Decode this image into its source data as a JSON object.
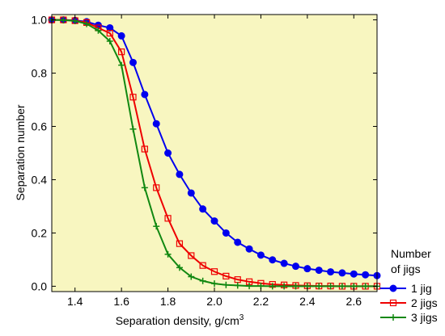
{
  "chart_data": {
    "type": "line",
    "xlabel": "Separation density,  g/cm",
    "xlabel_superscript": "3",
    "ylabel": "Separation number",
    "xlim": [
      1.3,
      2.7
    ],
    "ylim": [
      -0.02,
      1.02
    ],
    "x_ticks": [
      "1.4",
      "1.6",
      "1.8",
      "2.0",
      "2.2",
      "2.4",
      "2.6"
    ],
    "x_tick_values": [
      1.4,
      1.6,
      1.8,
      2.0,
      2.2,
      2.4,
      2.6
    ],
    "y_ticks": [
      "0.0",
      "0.2",
      "0.4",
      "0.6",
      "0.8",
      "1.0"
    ],
    "y_tick_values": [
      0.0,
      0.2,
      0.4,
      0.6,
      0.8,
      1.0
    ],
    "plot_background": "#f8f6c0",
    "grid": false,
    "legend_title": "Number\nof jigs",
    "legend_position": "right",
    "series": [
      {
        "name": "1 jig",
        "color": "#0000ee",
        "marker": "filled-circle",
        "points": [
          [
            1.3,
            1.0
          ],
          [
            1.35,
            1.0
          ],
          [
            1.4,
            0.998
          ],
          [
            1.45,
            0.993
          ],
          [
            1.5,
            0.98
          ],
          [
            1.55,
            0.97
          ],
          [
            1.6,
            0.94
          ],
          [
            1.65,
            0.84
          ],
          [
            1.7,
            0.72
          ],
          [
            1.75,
            0.61
          ],
          [
            1.8,
            0.5
          ],
          [
            1.85,
            0.42
          ],
          [
            1.9,
            0.35
          ],
          [
            1.95,
            0.29
          ],
          [
            2.0,
            0.245
          ],
          [
            2.05,
            0.2
          ],
          [
            2.1,
            0.165
          ],
          [
            2.15,
            0.14
          ],
          [
            2.2,
            0.117
          ],
          [
            2.25,
            0.099
          ],
          [
            2.3,
            0.086
          ],
          [
            2.35,
            0.075
          ],
          [
            2.4,
            0.066
          ],
          [
            2.45,
            0.06
          ],
          [
            2.5,
            0.054
          ],
          [
            2.55,
            0.05
          ],
          [
            2.6,
            0.046
          ],
          [
            2.65,
            0.043
          ],
          [
            2.7,
            0.04
          ]
        ]
      },
      {
        "name": "2 jigs",
        "color": "#ee0000",
        "marker": "open-square",
        "points": [
          [
            1.3,
            1.0
          ],
          [
            1.35,
            1.0
          ],
          [
            1.4,
            0.997
          ],
          [
            1.45,
            0.99
          ],
          [
            1.5,
            0.97
          ],
          [
            1.55,
            0.95
          ],
          [
            1.6,
            0.88
          ],
          [
            1.65,
            0.71
          ],
          [
            1.7,
            0.515
          ],
          [
            1.75,
            0.37
          ],
          [
            1.8,
            0.255
          ],
          [
            1.85,
            0.16
          ],
          [
            1.9,
            0.115
          ],
          [
            1.95,
            0.078
          ],
          [
            2.0,
            0.055
          ],
          [
            2.05,
            0.038
          ],
          [
            2.1,
            0.025
          ],
          [
            2.15,
            0.017
          ],
          [
            2.2,
            0.011
          ],
          [
            2.25,
            0.007
          ],
          [
            2.3,
            0.005
          ],
          [
            2.35,
            0.003
          ],
          [
            2.4,
            0.002
          ],
          [
            2.45,
            0.001
          ],
          [
            2.5,
            0.001
          ],
          [
            2.55,
            0.0
          ],
          [
            2.6,
            0.0
          ],
          [
            2.65,
            0.0
          ],
          [
            2.7,
            0.0
          ]
        ]
      },
      {
        "name": "3 jigs",
        "color": "#118811",
        "marker": "plus",
        "points": [
          [
            1.3,
            1.0
          ],
          [
            1.35,
            0.999
          ],
          [
            1.4,
            0.996
          ],
          [
            1.45,
            0.985
          ],
          [
            1.5,
            0.96
          ],
          [
            1.55,
            0.92
          ],
          [
            1.6,
            0.83
          ],
          [
            1.65,
            0.59
          ],
          [
            1.7,
            0.37
          ],
          [
            1.75,
            0.225
          ],
          [
            1.8,
            0.12
          ],
          [
            1.85,
            0.07
          ],
          [
            1.9,
            0.036
          ],
          [
            1.95,
            0.02
          ],
          [
            2.0,
            0.01
          ],
          [
            2.05,
            0.005
          ],
          [
            2.1,
            0.003
          ],
          [
            2.15,
            0.001
          ],
          [
            2.2,
            0.001
          ],
          [
            2.25,
            0.0
          ],
          [
            2.3,
            0.0
          ],
          [
            2.35,
            0.0
          ],
          [
            2.4,
            0.0
          ],
          [
            2.45,
            0.0
          ],
          [
            2.5,
            0.0
          ],
          [
            2.55,
            0.0
          ],
          [
            2.6,
            0.0
          ],
          [
            2.65,
            0.0
          ],
          [
            2.7,
            0.0
          ]
        ]
      }
    ]
  }
}
